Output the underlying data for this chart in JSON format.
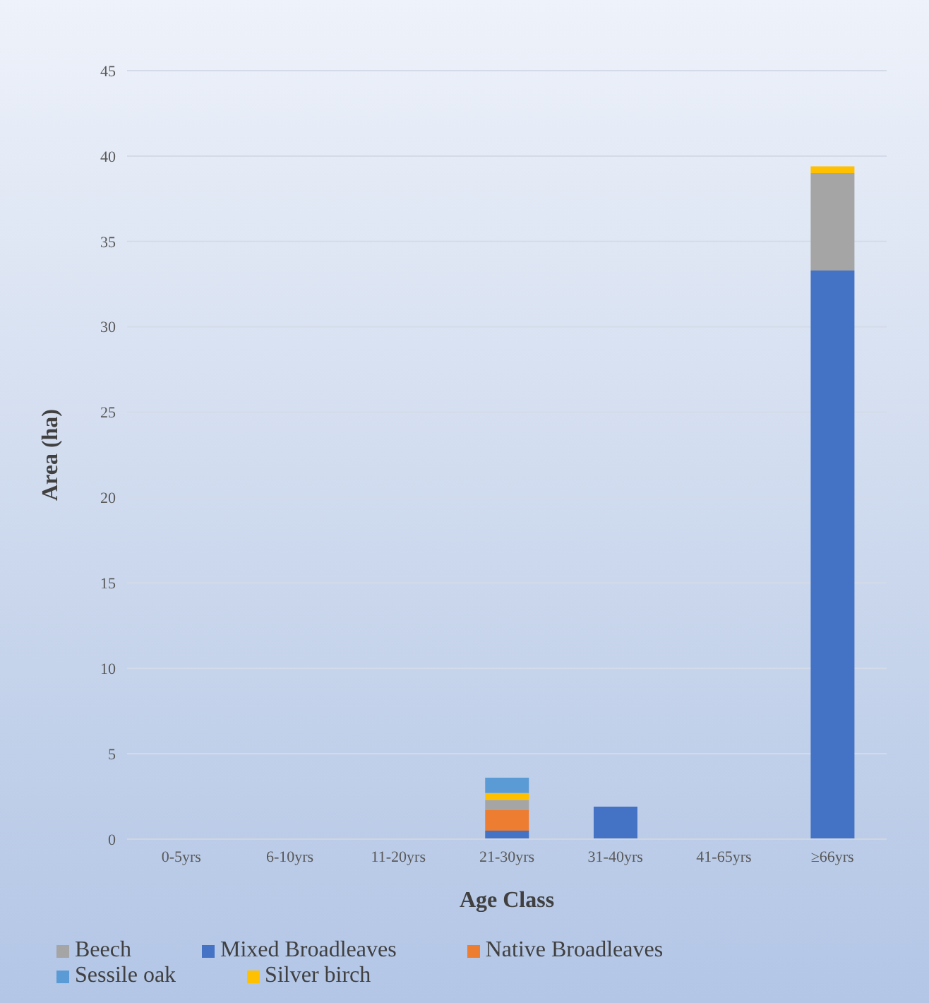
{
  "chart_data": {
    "type": "bar",
    "stacked": true,
    "xlabel": "Age Class",
    "ylabel": "Area (ha)",
    "categories": [
      "0-5yrs",
      "6-10yrs",
      "11-20yrs",
      "21-30yrs",
      "31-40yrs",
      "41-65yrs",
      "≥66yrs"
    ],
    "series": [
      {
        "name": "Mixed Broadleaves",
        "color": "#4472c4",
        "values": [
          0,
          0,
          0,
          0.5,
          1.9,
          0,
          33.3
        ]
      },
      {
        "name": "Native Broadleaves",
        "color": "#ed7d31",
        "values": [
          0,
          0,
          0,
          1.2,
          0,
          0,
          0
        ]
      },
      {
        "name": "Beech",
        "color": "#a5a5a5",
        "values": [
          0,
          0,
          0,
          0.6,
          0,
          0,
          5.7
        ]
      },
      {
        "name": "Silver birch",
        "color": "#ffc000",
        "values": [
          0,
          0,
          0,
          0.4,
          0,
          0,
          0.4
        ]
      },
      {
        "name": "Sessile oak",
        "color": "#5b9bd5",
        "values": [
          0,
          0,
          0,
          0.9,
          0,
          0,
          0
        ]
      }
    ],
    "ylim": [
      0,
      45
    ],
    "yticks": [
      0,
      5,
      10,
      15,
      20,
      25,
      30,
      35,
      40,
      45
    ],
    "grid": "y",
    "legend": "bottom"
  }
}
